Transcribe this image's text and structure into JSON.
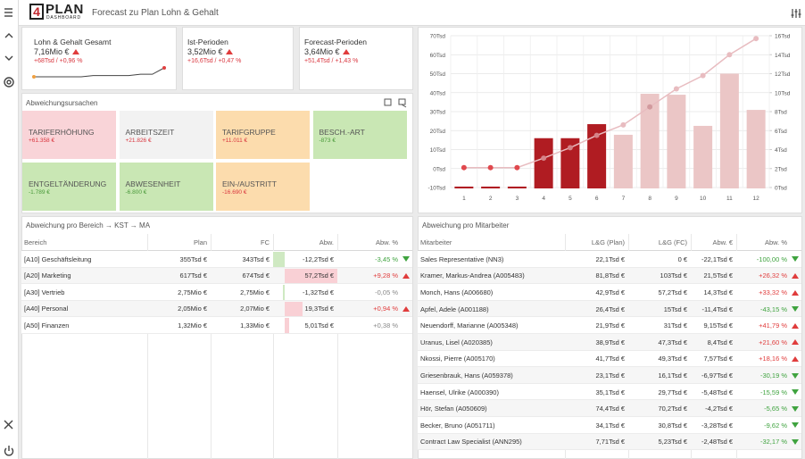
{
  "header": {
    "logo_number": "4",
    "logo_text": "PLAN",
    "logo_sub": "DASHBOARD",
    "title": "Forecast zu Plan Lohn & Gehalt"
  },
  "kpis": [
    {
      "label": "Lohn & Gehalt Gesamt",
      "value": "7,16Mio €",
      "delta": "+68Tsd / +0,96 %",
      "trend": "up",
      "sparkline": [
        7.09,
        7.09,
        7.09,
        7.09,
        7.09,
        7.1,
        7.1,
        7.1,
        7.1,
        7.11,
        7.11,
        7.16
      ]
    },
    {
      "label": "Ist-Perioden",
      "value": "3,52Mio €",
      "delta": "+16,6Tsd / +0,47 %",
      "trend": "up"
    },
    {
      "label": "Forecast-Perioden",
      "value": "3,64Mio €",
      "delta": "+51,4Tsd / +1,43 %",
      "trend": "up"
    }
  ],
  "causes": {
    "title": "Abweichungsursachen",
    "tiles": [
      {
        "label": "TARIFERHÖHUNG",
        "value": "+61.358 €",
        "color": "#f9d4d8",
        "text_color": "#d9363e"
      },
      {
        "label": "ARBEITSZEIT",
        "value": "+21.826 €",
        "color": "#f2f2f2",
        "text_color": "#d9363e"
      },
      {
        "label": "TARIFGRUPPE",
        "value": "+11.011 €",
        "color": "#fcdcad",
        "text_color": "#d9363e"
      },
      {
        "label": "BESCH.-ART",
        "value": "-873 €",
        "color": "#c9e7b4",
        "text_color": "#4a9a3a"
      },
      {
        "label": "ENTGELTÄNDERUNG",
        "value": "-1.789 €",
        "color": "#c9e7b4",
        "text_color": "#4a9a3a"
      },
      {
        "label": "ABWESENHEIT",
        "value": "-6.800 €",
        "color": "#c9e7b4",
        "text_color": "#4a9a3a"
      },
      {
        "label": "EIN-/AUSTRITT",
        "value": "-16.690 €",
        "color": "#fcdcad",
        "text_color": "#d9363e"
      }
    ]
  },
  "chart_data": {
    "type": "combo",
    "categories": [
      "1",
      "2",
      "3",
      "4",
      "5",
      "6",
      "7",
      "8",
      "9",
      "10",
      "11",
      "12"
    ],
    "series": [
      {
        "type": "bar",
        "values": [
          -9.5,
          -9.5,
          -9.5,
          16,
          16,
          23.4,
          17.8,
          39.4,
          38.9,
          22.5,
          50,
          30.9
        ],
        "colors": [
          "#b01c22",
          "#b01c22",
          "#b01c22",
          "#b01c22",
          "#b01c22",
          "#b01c22",
          "#ebc6c6",
          "#ebc6c6",
          "#ebc6c6",
          "#ebc6c6",
          "#ebc6c6",
          "#ebc6c6"
        ]
      },
      {
        "type": "line",
        "axis": "y2",
        "color": "#e8bcc0",
        "values": [
          2.1,
          2.1,
          2.1,
          3.1,
          4.2,
          5.5,
          6.6,
          8.5,
          10.4,
          11.8,
          14,
          15.7
        ],
        "marker_colors": [
          "#e0484d",
          "#e0484d",
          "#e0484d",
          "#d58388",
          "#d58388",
          "#d58388",
          "#e8bcc0",
          "#d29a9e",
          "#e8bcc0",
          "#e8bcc0",
          "#e8bcc0",
          "#e8bcc0"
        ]
      }
    ],
    "ylim": [
      -10,
      70
    ],
    "yticks": [
      {
        "value": -10,
        "label": "-10Tsd"
      },
      {
        "value": 0,
        "label": "0Tsd"
      },
      {
        "value": 10,
        "label": "10Tsd"
      },
      {
        "value": 20,
        "label": "20Tsd"
      },
      {
        "value": 30,
        "label": "30Tsd"
      },
      {
        "value": 40,
        "label": "40Tsd"
      },
      {
        "value": 50,
        "label": "50Tsd"
      },
      {
        "value": 60,
        "label": "60Tsd"
      },
      {
        "value": 70,
        "label": "70Tsd"
      }
    ],
    "y2lim": [
      0,
      16
    ],
    "y2ticks": [
      {
        "value": 0,
        "label": "0Tsd"
      },
      {
        "value": 2,
        "label": "2Tsd"
      },
      {
        "value": 4,
        "label": "4Tsd"
      },
      {
        "value": 6,
        "label": "6Tsd"
      },
      {
        "value": 8,
        "label": "8Tsd"
      },
      {
        "value": 10,
        "label": "10Tsd"
      },
      {
        "value": 12,
        "label": "12Tsd"
      },
      {
        "value": 14,
        "label": "14Tsd"
      },
      {
        "value": 16,
        "label": "16Tsd"
      }
    ],
    "grid": true
  },
  "area_table": {
    "title": "Abweichung pro Bereich → KST → MA",
    "columns": [
      "Bereich",
      "Plan",
      "FC",
      "Abw.",
      "Abw. %"
    ],
    "rows": [
      [
        "[A10] Geschäftsleitung",
        "355Tsd €",
        "343Tsd €",
        "-12,2Tsd €",
        "-3,45 %"
      ],
      [
        "[A20] Marketing",
        "617Tsd €",
        "674Tsd €",
        "57,2Tsd €",
        "+9,28 %"
      ],
      [
        "[A30] Vertrieb",
        "2,75Mio €",
        "2,75Mio €",
        "-1,32Tsd €",
        "-0,05 %"
      ],
      [
        "[A40] Personal",
        "2,05Mio €",
        "2,07Mio €",
        "19,3Tsd €",
        "+0,94 %"
      ],
      [
        "[A50] Finanzen",
        "1,32Mio €",
        "1,33Mio €",
        "5,01Tsd €",
        "+0,38 %"
      ]
    ],
    "trends": [
      "down",
      "up",
      null,
      "up",
      null
    ],
    "bars": [
      -12.2,
      57.2,
      -1.32,
      19.3,
      5.01
    ],
    "bar_colors": {
      "positive": "#f9d0d5",
      "negative": "#cfe9c2"
    }
  },
  "employee_table": {
    "title": "Abweichung pro Mitarbeiter",
    "columns": [
      "Mitarbeiter",
      "L&G (Plan)",
      "L&G (FC)",
      "Abw. €",
      "Abw. %"
    ],
    "rows": [
      [
        "Sales Representative (NN3)",
        "22,1Tsd €",
        "0 €",
        "-22,1Tsd €",
        "-100,00 %"
      ],
      [
        "Kramer, Markus-Andrea (A005483)",
        "81,8Tsd €",
        "103Tsd €",
        "21,5Tsd €",
        "+26,32 %"
      ],
      [
        "Monch, Hans (A006680)",
        "42,9Tsd €",
        "57,2Tsd €",
        "14,3Tsd €",
        "+33,32 %"
      ],
      [
        "Apfel, Adele (A001188)",
        "26,4Tsd €",
        "15Tsd €",
        "-11,4Tsd €",
        "-43,15 %"
      ],
      [
        "Neuendorff, Marianne (A005348)",
        "21,9Tsd €",
        "31Tsd €",
        "9,15Tsd €",
        "+41,79 %"
      ],
      [
        "Uranus, Lisel (A020385)",
        "38,9Tsd €",
        "47,3Tsd €",
        "8,4Tsd €",
        "+21,60 %"
      ],
      [
        "Nkossi, Pierre (A005170)",
        "41,7Tsd €",
        "49,3Tsd €",
        "7,57Tsd €",
        "+18,16 %"
      ],
      [
        "Griesenbrauk, Hans (A059378)",
        "23,1Tsd €",
        "16,1Tsd €",
        "-6,97Tsd €",
        "-30,19 %"
      ],
      [
        "Haensel, Ulrike (A000390)",
        "35,1Tsd €",
        "29,7Tsd €",
        "-5,48Tsd €",
        "-15,59 %"
      ],
      [
        "Hör, Stefan (A050609)",
        "74,4Tsd €",
        "70,2Tsd €",
        "-4,2Tsd €",
        "-5,65 %"
      ],
      [
        "Becker, Bruno (A051711)",
        "34,1Tsd €",
        "30,8Tsd €",
        "-3,28Tsd €",
        "-9,62 %"
      ],
      [
        "Contract Law Specialist (ANN295)",
        "7,71Tsd €",
        "5,23Tsd €",
        "-2,48Tsd €",
        "-32,17 %"
      ]
    ],
    "trends": [
      "down",
      "up",
      "up",
      "down",
      "up",
      "up",
      "up",
      "down",
      "down",
      "down",
      "down",
      "down"
    ]
  }
}
